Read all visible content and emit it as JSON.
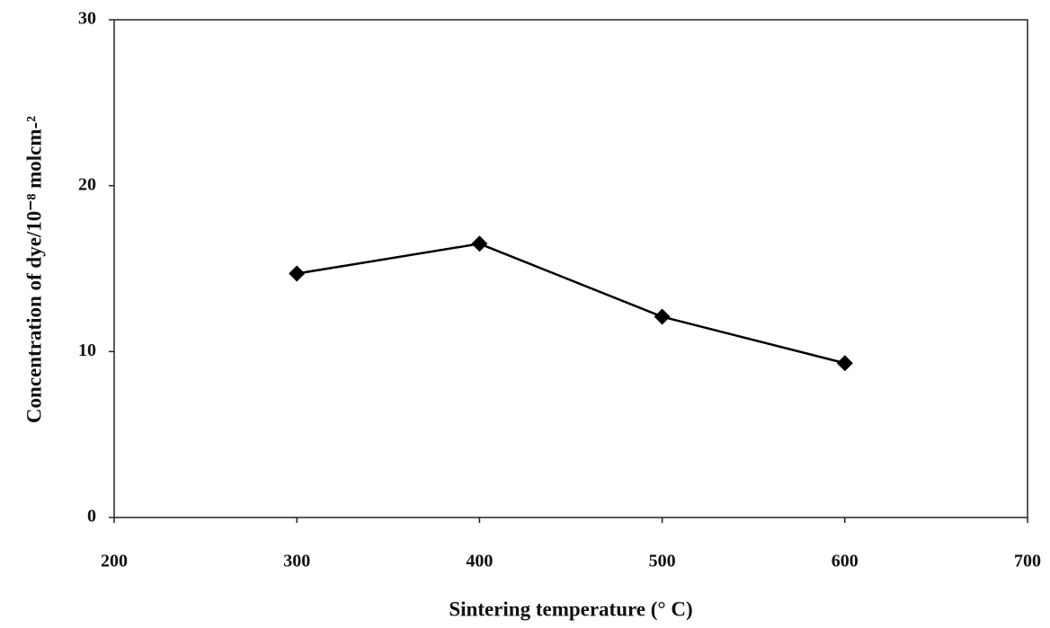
{
  "chart_data": {
    "type": "line",
    "x_label": "Sintering temperature (° C)",
    "y_label": "Concentration of dye/10⁻⁸ molcm-²",
    "x": [
      300,
      400,
      500,
      600
    ],
    "series": [
      {
        "color": "#000000",
        "values": [
          14.7,
          16.5,
          12.1,
          9.3
        ]
      }
    ],
    "xlim": [
      200,
      700
    ],
    "xticks": [
      200,
      300,
      400,
      500,
      600,
      700
    ],
    "ylim": [
      0,
      30
    ],
    "yticks": [
      0,
      10,
      20,
      30
    ],
    "grid": false
  }
}
